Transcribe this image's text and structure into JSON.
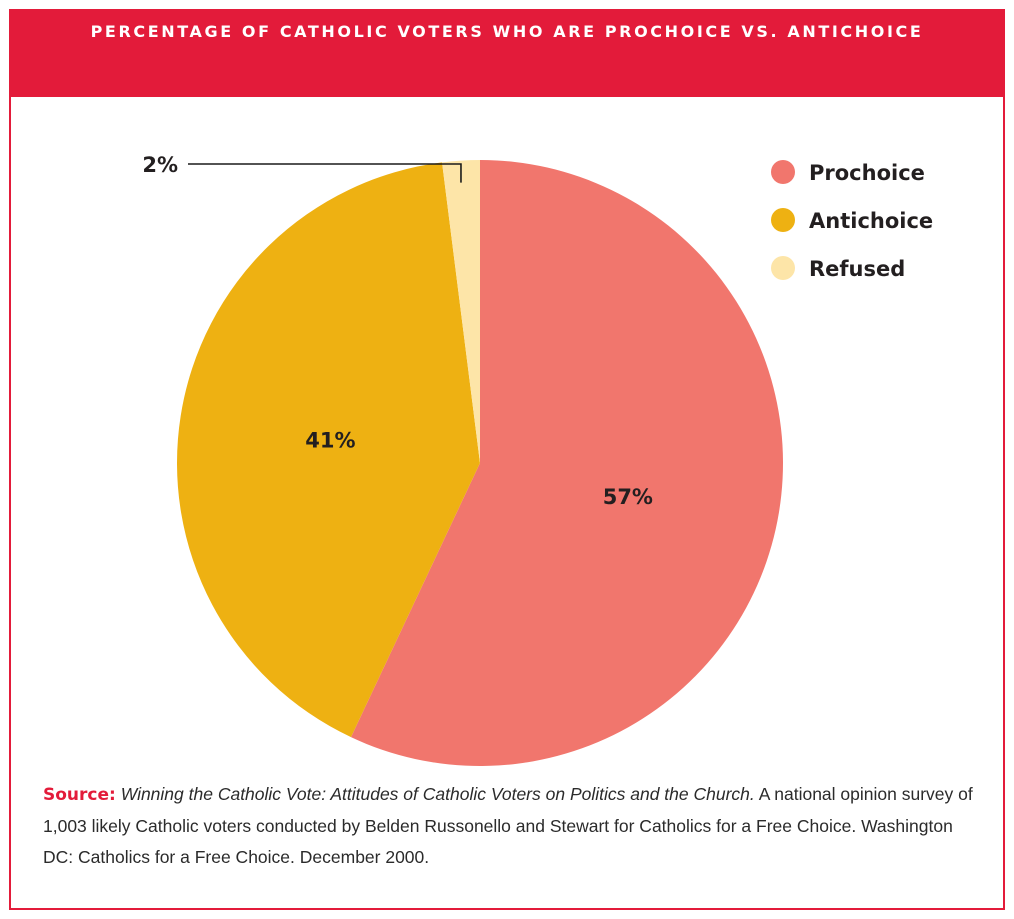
{
  "header": {
    "title": "PERCENTAGE OF CATHOLIC VOTERS WHO ARE PROCHOICE VS. ANTICHOICE"
  },
  "chart_data": {
    "type": "pie",
    "title": "PERCENTAGE OF CATHOLIC VOTERS WHO ARE PROCHOICE VS. ANTICHOICE",
    "unit": "%",
    "legend_position": "top-right",
    "slices": [
      {
        "label": "Prochoice",
        "value": 57,
        "display": "57%",
        "color": "#f1766d"
      },
      {
        "label": "Antichoice",
        "value": 41,
        "display": "41%",
        "color": "#eeb112"
      },
      {
        "label": "Refused",
        "value": 2,
        "display": "2%",
        "color": "#fde5a8"
      }
    ]
  },
  "source": {
    "label": "Source:",
    "title": "Winning the Catholic Vote: Attitudes of Catholic Voters on Politics and the Church.",
    "text": "A national opinion survey of 1,003 likely Catholic voters conducted by Belden Russonello and Stewart for Catholics for a Free Choice. Washington DC: Catholics for a Free Choice. December 2000."
  }
}
